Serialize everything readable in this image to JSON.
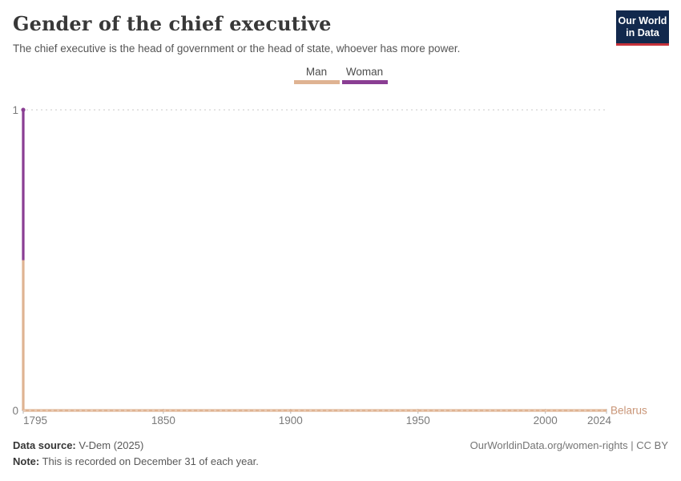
{
  "header": {
    "title": "Gender of the chief executive",
    "subtitle": "The chief executive is the head of government or the head of state, whoever has more power.",
    "logo": {
      "line1": "Our World",
      "line2": "in Data",
      "bg_color": "#12294D",
      "accent_color": "#C6323A"
    }
  },
  "chart_data": {
    "type": "line",
    "title": "Gender of the chief executive",
    "legend": [
      {
        "label": "Man",
        "value": 0,
        "color": "#DFB392"
      },
      {
        "label": "Woman",
        "value": 1,
        "color": "#8A3E93"
      }
    ],
    "x_axis": {
      "min": 1795,
      "max": 2024,
      "ticks": [
        1795,
        1850,
        1900,
        1950,
        2000,
        2024
      ]
    },
    "y_axis": {
      "min": 0,
      "max": 1,
      "ticks": [
        0,
        1
      ],
      "gridlines": "dashed"
    },
    "series": [
      {
        "entity": "Belarus",
        "label_color": "#C99577",
        "points": [
          {
            "year": 1795,
            "value": 1
          },
          {
            "year": 1796,
            "value": 0
          },
          {
            "year": 2024,
            "value": 0
          }
        ]
      }
    ],
    "value_encoding": {
      "0": "Man",
      "1": "Woman"
    }
  },
  "footer": {
    "source_label": "Data source:",
    "source_value": " V-Dem (2025)",
    "note_label": "Note:",
    "note_value": " This is recorded on December 31 of each year.",
    "attribution": "OurWorldinData.org/women-rights | CC BY"
  }
}
